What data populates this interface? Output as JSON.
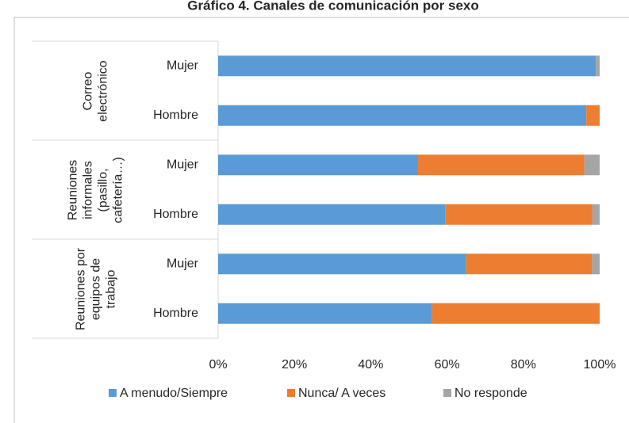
{
  "chart_data": {
    "type": "stacked_barh",
    "title": "Gráfico 4. Canales de comunicación por sexo",
    "groups": [
      "Correo electrónico",
      "Reuniones informales (pasillo, cafetería…)",
      "Reuniones por equipos de trabajo"
    ],
    "categories": [
      "Mujer",
      "Hombre",
      "Mujer",
      "Hombre",
      "Mujer",
      "Hombre"
    ],
    "series": [
      {
        "name": "A menudo/Siempre",
        "color": "#5b9bd5",
        "values": [
          99,
          96.5,
          52.4,
          59.5,
          65,
          56
        ]
      },
      {
        "name": "Nunca/ A veces",
        "color": "#ed7d31",
        "values": [
          0,
          3.5,
          43.6,
          38.6,
          33,
          44
        ]
      },
      {
        "name": "No responde",
        "color": "#a5a5a5",
        "values": [
          1,
          0,
          4,
          1.9,
          2,
          0
        ]
      }
    ],
    "xlim": [
      0,
      100
    ],
    "xticks": [
      {
        "value": 0,
        "label": "0%"
      },
      {
        "value": 20,
        "label": "20%"
      },
      {
        "value": 40,
        "label": "40%"
      },
      {
        "value": 60,
        "label": "60%"
      },
      {
        "value": 80,
        "label": "80%"
      },
      {
        "value": 100,
        "label": "100%"
      }
    ],
    "legend": "bottom"
  }
}
